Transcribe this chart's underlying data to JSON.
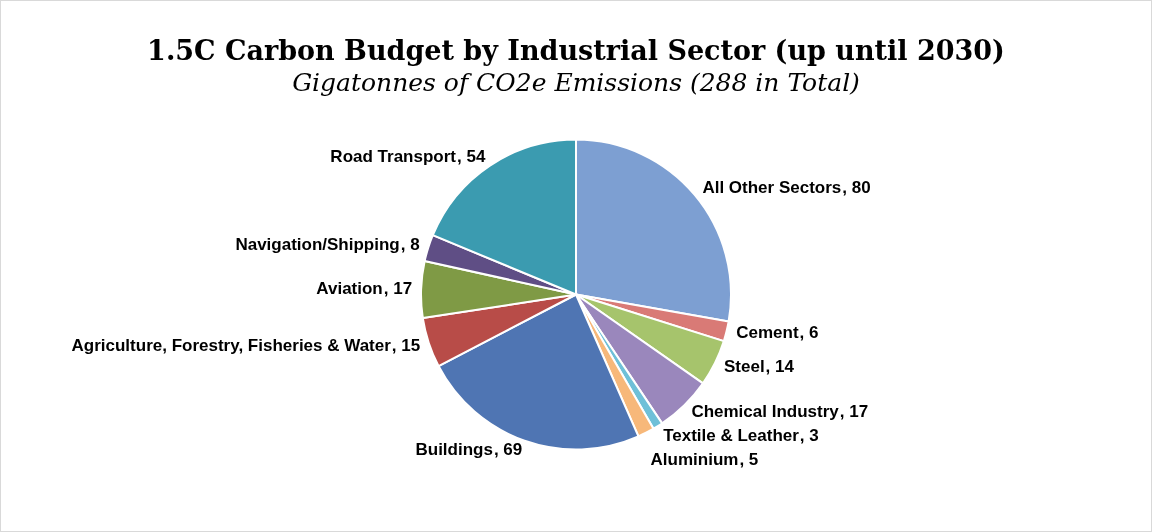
{
  "chart_data": {
    "type": "pie",
    "title": "1.5C Carbon Budget by Industrial Sector (up until 2030)",
    "subtitle": "Gigatonnes of CO2e Emissions (288 in Total)",
    "categories": [
      "All Other Sectors",
      "Cement",
      "Steel",
      "Chemical Industry",
      "Textile & Leather",
      "Aluminium",
      "Buildings",
      "Agriculture, Forestry, Fisheries & Water",
      "Aviation",
      "Navigation/Shipping",
      "Road Transport"
    ],
    "values": [
      80,
      6,
      14,
      17,
      3,
      5,
      69,
      15,
      17,
      8,
      54
    ],
    "value_labels": [
      ", 80",
      ", 6",
      ", 14",
      ", 17",
      ", 3",
      ", 5",
      ", 69",
      ", 15",
      ", 17",
      ", 8",
      ", 54"
    ],
    "colors": [
      "#7d9fd2",
      "#d97a76",
      "#a6c46c",
      "#9a87bc",
      "#6fc0d8",
      "#f7b87a",
      "#4f75b3",
      "#b84c48",
      "#7f9a45",
      "#5f4e85",
      "#3b9bb0"
    ],
    "legend": false
  }
}
